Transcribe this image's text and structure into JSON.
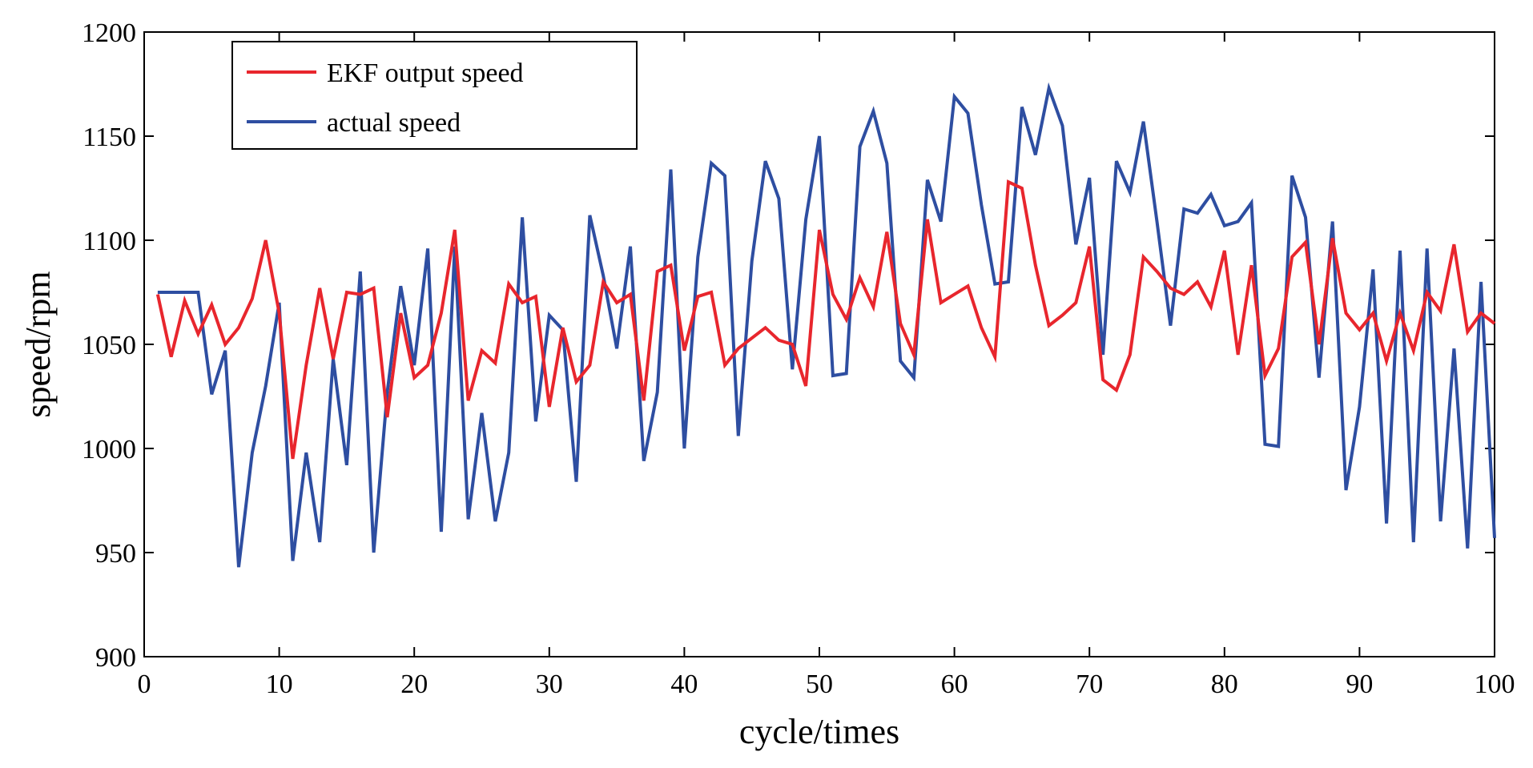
{
  "chart_data": {
    "type": "line",
    "title": "",
    "xlabel": "cycle/times",
    "ylabel": "speed/rpm",
    "xlim": [
      0,
      100
    ],
    "ylim": [
      900,
      1200
    ],
    "xticks": [
      0,
      10,
      20,
      30,
      40,
      50,
      60,
      70,
      80,
      90,
      100
    ],
    "yticks": [
      900,
      950,
      1000,
      1050,
      1100,
      1150,
      1200
    ],
    "xtick_labels": [
      "0",
      "10",
      "20",
      "30",
      "40",
      "50",
      "60",
      "70",
      "80",
      "90",
      "100"
    ],
    "ytick_labels": [
      "900",
      "950",
      "1000",
      "1050",
      "1100",
      "1150",
      "1200"
    ],
    "grid": false,
    "legend_position": "top-left",
    "x": [
      1,
      2,
      3,
      4,
      5,
      6,
      7,
      8,
      9,
      10,
      11,
      12,
      13,
      14,
      15,
      16,
      17,
      18,
      19,
      20,
      21,
      22,
      23,
      24,
      25,
      26,
      27,
      28,
      29,
      30,
      31,
      32,
      33,
      34,
      35,
      36,
      37,
      38,
      39,
      40,
      41,
      42,
      43,
      44,
      45,
      46,
      47,
      48,
      49,
      50,
      51,
      52,
      53,
      54,
      55,
      56,
      57,
      58,
      59,
      60,
      61,
      62,
      63,
      64,
      65,
      66,
      67,
      68,
      69,
      70,
      71,
      72,
      73,
      74,
      75,
      76,
      77,
      78,
      79,
      80,
      81,
      82,
      83,
      84,
      85,
      86,
      87,
      88,
      89,
      90,
      91,
      92,
      93,
      94,
      95,
      96,
      97,
      98,
      99,
      100
    ],
    "series": [
      {
        "name": "EKF output speed",
        "color": "#e8262d",
        "values": [
          1074,
          1044,
          1071,
          1055,
          1069,
          1050,
          1058,
          1072,
          1100,
          1065,
          995,
          1040,
          1077,
          1043,
          1075,
          1074,
          1077,
          1015,
          1065,
          1034,
          1040,
          1065,
          1105,
          1023,
          1047,
          1041,
          1079,
          1070,
          1073,
          1020,
          1058,
          1032,
          1040,
          1080,
          1070,
          1074,
          1023,
          1085,
          1088,
          1047,
          1073,
          1075,
          1040,
          1048,
          1053,
          1058,
          1052,
          1050,
          1030,
          1105,
          1074,
          1062,
          1082,
          1068,
          1104,
          1060,
          1045,
          1110,
          1070,
          1074,
          1078,
          1058,
          1044,
          1128,
          1125,
          1088,
          1059,
          1064,
          1070,
          1097,
          1033,
          1028,
          1045,
          1092,
          1085,
          1077,
          1074,
          1080,
          1068,
          1095,
          1045,
          1088,
          1035,
          1048,
          1092,
          1099,
          1050,
          1101,
          1065,
          1057,
          1065,
          1042,
          1065,
          1047,
          1075,
          1066,
          1098,
          1056,
          1065,
          1060
        ]
      },
      {
        "name": "actual speed",
        "color": "#2e4ea1",
        "values": [
          1075,
          1075,
          1075,
          1075,
          1026,
          1047,
          943,
          998,
          1030,
          1070,
          946,
          998,
          955,
          1043,
          992,
          1085,
          950,
          1027,
          1078,
          1040,
          1096,
          960,
          1097,
          966,
          1017,
          965,
          998,
          1111,
          1013,
          1064,
          1057,
          984,
          1112,
          1083,
          1048,
          1097,
          994,
          1027,
          1134,
          1000,
          1092,
          1137,
          1131,
          1006,
          1090,
          1138,
          1120,
          1038,
          1110,
          1150,
          1035,
          1036,
          1145,
          1162,
          1137,
          1042,
          1034,
          1129,
          1109,
          1169,
          1161,
          1117,
          1079,
          1080,
          1164,
          1141,
          1173,
          1155,
          1098,
          1130,
          1045,
          1138,
          1123,
          1157,
          1109,
          1059,
          1115,
          1113,
          1122,
          1107,
          1109,
          1118,
          1002,
          1001,
          1131,
          1111,
          1034,
          1109,
          980,
          1020,
          1086,
          964,
          1095,
          955,
          1096,
          965,
          1048,
          952,
          1080,
          957
        ]
      }
    ]
  }
}
